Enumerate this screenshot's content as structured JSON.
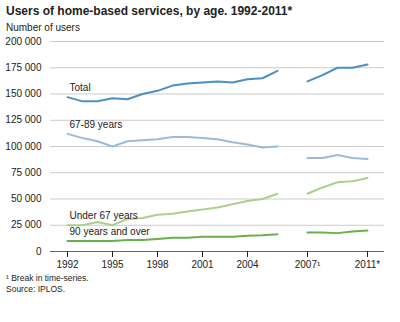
{
  "chart_data": {
    "type": "line",
    "title": "Users of home-based services, by age. 1992-2011*",
    "y_label": "Number of users",
    "footnote": "¹ Break in time-series.",
    "source": "Source: IPLOS.",
    "categories": [
      "1992",
      null,
      null,
      "1995",
      null,
      null,
      "1998",
      null,
      null,
      "2001",
      null,
      null,
      "2004",
      null,
      null,
      null,
      "2007¹",
      null,
      null,
      null,
      "2011*"
    ],
    "series": [
      {
        "name": "Total",
        "color": "#4a90c4",
        "values": [
          147000,
          143000,
          143000,
          146000,
          145000,
          150000,
          153000,
          158000,
          160000,
          161000,
          162000,
          161000,
          164000,
          165000,
          172000,
          null,
          162000,
          168000,
          175000,
          175000,
          178000
        ]
      },
      {
        "name": "67-89 years",
        "color": "#9dbbd8",
        "values": [
          112000,
          108000,
          105000,
          100000,
          105000,
          106000,
          107000,
          109000,
          109000,
          108000,
          107000,
          104000,
          102000,
          99000,
          100000,
          null,
          89000,
          89000,
          92000,
          89000,
          88000
        ]
      },
      {
        "name": "Under 67 years",
        "color": "#a9d18e",
        "values": [
          25000,
          25000,
          28000,
          25000,
          31000,
          32000,
          35000,
          36000,
          38000,
          40000,
          42000,
          45000,
          48000,
          50000,
          55000,
          null,
          55000,
          61000,
          66000,
          67000,
          70000
        ]
      },
      {
        "name": "90 years and over",
        "color": "#6ab04c",
        "values": [
          10000,
          10000,
          10000,
          10000,
          11000,
          11000,
          12000,
          13000,
          13000,
          14000,
          14000,
          14000,
          15000,
          15500,
          16500,
          null,
          18000,
          18000,
          17500,
          19000,
          20000
        ]
      }
    ],
    "ylim": [
      0,
      200000
    ],
    "yticks": [
      0,
      {
        "value": 25000,
        "label": "25 000"
      },
      {
        "value": 50000,
        "label": "50 000"
      },
      {
        "value": 75000,
        "label": "75 000"
      },
      {
        "value": 100000,
        "label": "100 000"
      },
      {
        "value": 125000,
        "label": "125 000"
      },
      {
        "value": 150000,
        "label": "150 000"
      },
      {
        "value": 175000,
        "label": "175 000"
      },
      {
        "value": 200000,
        "label": "200 000"
      }
    ],
    "grid": true
  }
}
